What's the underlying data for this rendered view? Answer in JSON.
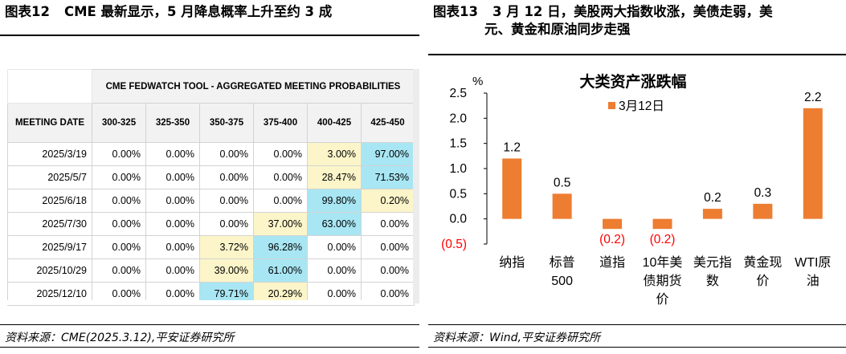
{
  "left_panel": {
    "title_num": "图表12",
    "title_text": "CME 最新显示，5 月降息概率上升至约 3 成",
    "table": {
      "banner": "CME FEDWATCH TOOL - AGGREGATED MEETING PROBABILITIES",
      "date_header": "MEETING DATE",
      "columns": [
        "300-325",
        "325-350",
        "350-375",
        "375-400",
        "400-425",
        "425-450"
      ],
      "rows": [
        {
          "date": "2025/3/19",
          "values": [
            "0.00%",
            "0.00%",
            "0.00%",
            "0.00%",
            "3.00%",
            "97.00%"
          ],
          "highlight": [
            "",
            "",
            "",
            "",
            "y",
            "b"
          ]
        },
        {
          "date": "2025/5/7",
          "values": [
            "0.00%",
            "0.00%",
            "0.00%",
            "0.00%",
            "28.47%",
            "71.53%"
          ],
          "highlight": [
            "",
            "",
            "",
            "",
            "y",
            "b"
          ]
        },
        {
          "date": "2025/6/18",
          "values": [
            "0.00%",
            "0.00%",
            "0.00%",
            "0.00%",
            "99.80%",
            "0.20%"
          ],
          "highlight": [
            "",
            "",
            "",
            "",
            "b",
            "y"
          ]
        },
        {
          "date": "2025/7/30",
          "values": [
            "0.00%",
            "0.00%",
            "0.00%",
            "37.00%",
            "63.00%",
            "0.00%"
          ],
          "highlight": [
            "",
            "",
            "",
            "y",
            "b",
            ""
          ]
        },
        {
          "date": "2025/9/17",
          "values": [
            "0.00%",
            "0.00%",
            "3.72%",
            "96.28%",
            "0.00%",
            "0.00%"
          ],
          "highlight": [
            "",
            "",
            "y",
            "b",
            "",
            ""
          ]
        },
        {
          "date": "2025/10/29",
          "values": [
            "0.00%",
            "0.00%",
            "39.00%",
            "61.00%",
            "0.00%",
            "0.00%"
          ],
          "highlight": [
            "",
            "",
            "y",
            "b",
            "",
            ""
          ]
        },
        {
          "date": "2025/12/10",
          "values": [
            "0.00%",
            "0.00%",
            "79.71%",
            "20.29%",
            "0.00%",
            "0.00%"
          ],
          "highlight": [
            "",
            "",
            "b",
            "y",
            "",
            ""
          ]
        }
      ]
    },
    "source": "资料来源：CME(2025.3.12),平安证券研究所"
  },
  "right_panel": {
    "title_num": "图表13",
    "title_line1": "3 月 12 日，美股两大指数收涨，美债走弱，美",
    "title_line2": "元、黄金和原油同步走强",
    "source": "资料来源：Wind,平安证券研究所"
  },
  "chart_data": {
    "type": "bar",
    "title": "大类资产涨跌幅",
    "ylabel": "%",
    "ylim": [
      -0.5,
      2.5
    ],
    "yticks": [
      "(0.5)",
      "0.0",
      "0.5",
      "1.0",
      "1.5",
      "2.0",
      "2.5"
    ],
    "ytick_values": [
      -0.5,
      0,
      0.5,
      1.0,
      1.5,
      2.0,
      2.5
    ],
    "categories": [
      "纳指",
      "标普500",
      "道指",
      "10年美债期货价",
      "美元指数",
      "黄金现价",
      "WTI原油"
    ],
    "category_lines": [
      [
        "纳指"
      ],
      [
        "标普",
        "500"
      ],
      [
        "道指"
      ],
      [
        "10年美",
        "债期货",
        "价"
      ],
      [
        "美元指",
        "数"
      ],
      [
        "黄金现",
        "价"
      ],
      [
        "WTI原",
        "油"
      ]
    ],
    "series": [
      {
        "name": "3月12日",
        "values": [
          1.2,
          0.5,
          -0.2,
          -0.2,
          0.2,
          0.3,
          2.2
        ]
      }
    ],
    "value_labels": [
      "1.2",
      "0.5",
      "(0.2)",
      "(0.2)",
      "0.2",
      "0.3",
      "2.2"
    ],
    "bar_color": "#ED7D31",
    "negative_label_color": "#FF0000",
    "legend_position": "top-center",
    "grid": false
  }
}
